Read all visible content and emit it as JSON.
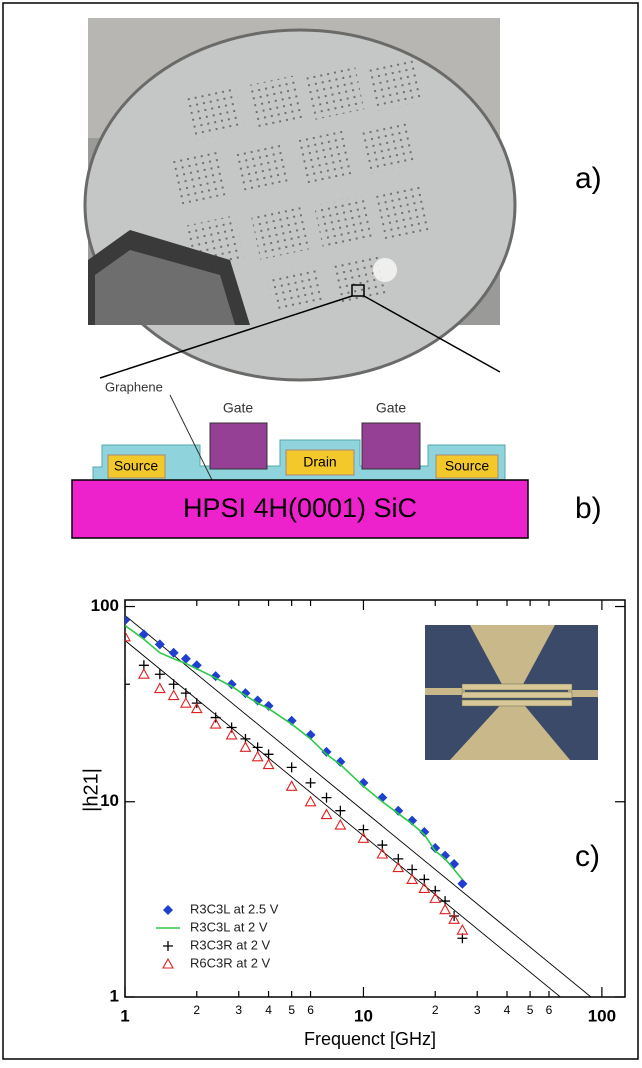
{
  "figure": {
    "panel_a": "a)",
    "panel_b": "b)",
    "panel_c": "c)",
    "cross_section": {
      "graphene": "Graphene",
      "gate_left": "Gate",
      "gate_right": "Gate",
      "source_left": "Source",
      "drain": "Drain",
      "source_right": "Source",
      "substrate": "HPSI 4H(0001) SiC"
    }
  },
  "chart_data": {
    "type": "scatter",
    "xlabel": "Frequenct [GHz]",
    "ylabel": "|h21|",
    "xscale": "log",
    "yscale": "log",
    "xlim": [
      1,
      125
    ],
    "ylim": [
      1,
      108
    ],
    "xticks": [
      1,
      2,
      3,
      4,
      5,
      6,
      10,
      {
        "value": 20,
        "label": "2"
      },
      {
        "value": 30,
        "label": "3"
      },
      {
        "value": 40,
        "label": "4"
      },
      {
        "value": 50,
        "label": "5"
      },
      {
        "value": 60,
        "label": "6"
      },
      100
    ],
    "yticks": [
      1,
      10,
      100
    ],
    "x": [
      1.0,
      1.2,
      1.4,
      1.6,
      1.8,
      2.0,
      2.4,
      2.8,
      3.2,
      3.6,
      4,
      5,
      6,
      7,
      8,
      10,
      12,
      14,
      16,
      18,
      20,
      22,
      24,
      26
    ],
    "series": [
      {
        "name": "R3C3L at 2.5 V",
        "color": "#1f3fd0",
        "marker": "diamond",
        "values": [
          85,
          72,
          64,
          58,
          54,
          50,
          44,
          40,
          36,
          33,
          31,
          26,
          22,
          18,
          16,
          12.5,
          10.5,
          9,
          8,
          7,
          5.8,
          5.3,
          4.8,
          3.8
        ]
      },
      {
        "name": "R3C3L at 2 V",
        "color": "#2fc84a",
        "marker": "line",
        "values": [
          80,
          68,
          58,
          54,
          51,
          48,
          43,
          39,
          35,
          32,
          30,
          25,
          21,
          17.5,
          15.5,
          12,
          10,
          8.7,
          7.7,
          6.8,
          5.6,
          5.1,
          4.5,
          4
        ]
      },
      {
        "name": "R3C3R at 2 V",
        "color": "#000000",
        "marker": "plus",
        "values": [
          40,
          50,
          45,
          40,
          36,
          32,
          27,
          24,
          21,
          19,
          17.5,
          15,
          12.5,
          10.5,
          9,
          7.2,
          6,
          5.1,
          4.5,
          4,
          3.5,
          3.1,
          2.6,
          2
        ]
      },
      {
        "name": "R6C3R at 2 V",
        "color": "#e02020",
        "marker": "triangle",
        "values": [
          70,
          45,
          38,
          35,
          32,
          30,
          25,
          22,
          19,
          17,
          15.5,
          12,
          10,
          8.6,
          7.6,
          6.5,
          5.4,
          4.6,
          4,
          3.6,
          3.2,
          2.8,
          2.5,
          2.2
        ]
      }
    ],
    "fit_lines": [
      {
        "x": [
          1,
          125
        ],
        "values": [
          90,
          0.72
        ]
      },
      {
        "x": [
          1,
          125
        ],
        "values": [
          67,
          0.536
        ]
      }
    ],
    "legend": "lower left"
  }
}
